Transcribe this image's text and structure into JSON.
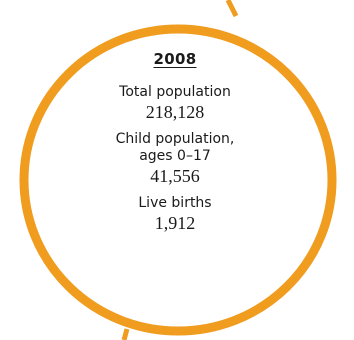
{
  "colors": {
    "ring": "#EF9C1F",
    "text": "#1a1a1a",
    "background": "#ffffff"
  },
  "card": {
    "year": "2008",
    "stats": [
      {
        "label": "Total population",
        "value": "218,128"
      },
      {
        "label": "Child population, ages 0–17",
        "value": "41,556"
      },
      {
        "label": "Live births",
        "value": "1,912"
      }
    ]
  }
}
